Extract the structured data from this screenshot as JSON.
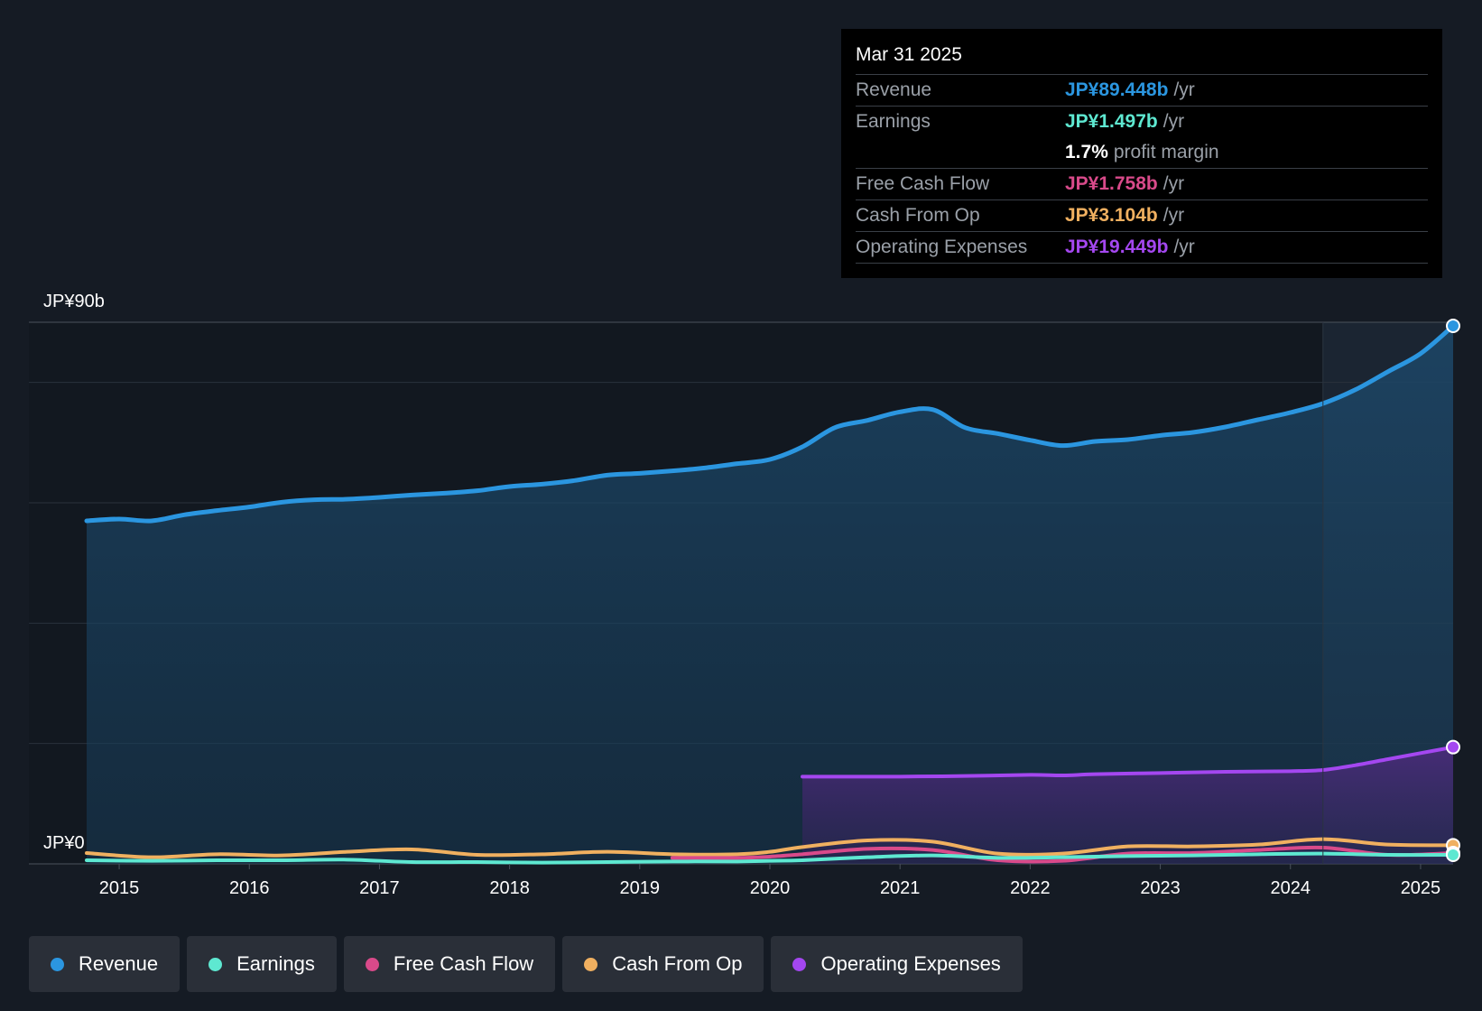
{
  "tooltip": {
    "date": "Mar 31 2025",
    "rows": [
      {
        "label": "Revenue",
        "value": "JP¥89.448b",
        "unit": "/yr",
        "color": "#2b96e0"
      },
      {
        "label": "Earnings",
        "value": "JP¥1.497b",
        "unit": "/yr",
        "color": "#5ee8d1"
      },
      {
        "label": "",
        "value": "1.7%",
        "unit": "profit margin",
        "color": "#ffffff"
      },
      {
        "label": "Free Cash Flow",
        "value": "JP¥1.758b",
        "unit": "/yr",
        "color": "#d94a8a"
      },
      {
        "label": "Cash From Op",
        "value": "JP¥3.104b",
        "unit": "/yr",
        "color": "#f0b060"
      },
      {
        "label": "Operating Expenses",
        "value": "JP¥19.449b",
        "unit": "/yr",
        "color": "#a447f0"
      }
    ]
  },
  "legend": [
    {
      "label": "Revenue",
      "color": "#2b96e0"
    },
    {
      "label": "Earnings",
      "color": "#5ee8d1"
    },
    {
      "label": "Free Cash Flow",
      "color": "#d94a8a"
    },
    {
      "label": "Cash From Op",
      "color": "#f0b060"
    },
    {
      "label": "Operating Expenses",
      "color": "#a447f0"
    }
  ],
  "chart_data": {
    "type": "area",
    "title": "",
    "ylabel_top": "JP¥90b",
    "ylabel_bottom": "JP¥0",
    "ylim": [
      0,
      90
    ],
    "xlim": [
      2014.75,
      2025.25
    ],
    "x_ticks": [
      "2015",
      "2016",
      "2017",
      "2018",
      "2019",
      "2020",
      "2021",
      "2022",
      "2023",
      "2024",
      "2025"
    ],
    "forecast_divider": 2024.25,
    "series": [
      {
        "name": "Revenue",
        "color": "#2b96e0",
        "fill": true,
        "x": [
          2014.75,
          2015.0,
          2015.25,
          2015.5,
          2015.75,
          2016.0,
          2016.25,
          2016.5,
          2016.75,
          2017.0,
          2017.25,
          2017.5,
          2017.75,
          2018.0,
          2018.25,
          2018.5,
          2018.75,
          2019.0,
          2019.25,
          2019.5,
          2019.75,
          2020.0,
          2020.25,
          2020.5,
          2020.75,
          2021.0,
          2021.25,
          2021.5,
          2021.75,
          2022.0,
          2022.25,
          2022.5,
          2022.75,
          2023.0,
          2023.25,
          2023.5,
          2023.75,
          2024.0,
          2024.25,
          2024.5,
          2024.75,
          2025.0,
          2025.25
        ],
        "values": [
          57.0,
          57.3,
          57.0,
          58.0,
          58.7,
          59.3,
          60.1,
          60.5,
          60.6,
          60.9,
          61.3,
          61.6,
          62.0,
          62.7,
          63.1,
          63.7,
          64.6,
          64.9,
          65.3,
          65.8,
          66.5,
          67.2,
          69.3,
          72.5,
          73.7,
          75.1,
          75.5,
          72.5,
          71.5,
          70.4,
          69.5,
          70.2,
          70.5,
          71.2,
          71.7,
          72.6,
          73.8,
          75.0,
          76.5,
          78.8,
          81.8,
          84.8,
          89.4
        ]
      },
      {
        "name": "Operating Expenses",
        "color": "#a447f0",
        "fill": true,
        "x": [
          2020.25,
          2020.75,
          2021.0,
          2021.5,
          2022.0,
          2022.25,
          2022.5,
          2023.0,
          2023.5,
          2024.0,
          2024.25,
          2024.5,
          2024.75,
          2025.0,
          2025.25
        ],
        "values": [
          14.5,
          14.5,
          14.5,
          14.6,
          14.8,
          14.7,
          14.9,
          15.1,
          15.3,
          15.4,
          15.6,
          16.4,
          17.4,
          18.4,
          19.4
        ]
      },
      {
        "name": "Cash From Op",
        "color": "#f0b060",
        "fill": false,
        "x": [
          2014.75,
          2015.25,
          2015.75,
          2016.25,
          2016.75,
          2017.25,
          2017.75,
          2018.25,
          2018.75,
          2019.25,
          2019.75,
          2020.0,
          2020.25,
          2020.75,
          2021.25,
          2021.75,
          2022.25,
          2022.75,
          2023.25,
          2023.75,
          2024.25,
          2024.75,
          2025.25
        ],
        "values": [
          1.8,
          1.1,
          1.6,
          1.4,
          2.0,
          2.4,
          1.5,
          1.6,
          2.0,
          1.6,
          1.6,
          2.0,
          2.8,
          3.9,
          3.7,
          1.7,
          1.7,
          2.9,
          2.9,
          3.2,
          4.1,
          3.2,
          3.1
        ]
      },
      {
        "name": "Free Cash Flow",
        "color": "#d94a8a",
        "fill": false,
        "x": [
          2019.25,
          2019.75,
          2020.0,
          2020.25,
          2020.75,
          2021.25,
          2021.75,
          2022.25,
          2022.75,
          2023.25,
          2023.75,
          2024.25,
          2024.75,
          2025.25
        ],
        "values": [
          1.0,
          1.0,
          1.2,
          1.6,
          2.5,
          2.3,
          0.6,
          0.5,
          1.7,
          1.8,
          2.3,
          2.7,
          1.5,
          1.8
        ]
      },
      {
        "name": "Earnings",
        "color": "#5ee8d1",
        "fill": false,
        "x": [
          2014.75,
          2015.25,
          2015.75,
          2016.25,
          2016.75,
          2017.25,
          2017.75,
          2018.25,
          2018.75,
          2019.25,
          2019.75,
          2020.0,
          2020.25,
          2020.75,
          2021.25,
          2021.75,
          2022.25,
          2022.75,
          2023.25,
          2023.75,
          2024.25,
          2024.75,
          2025.25
        ],
        "values": [
          0.6,
          0.5,
          0.6,
          0.6,
          0.7,
          0.3,
          0.3,
          0.2,
          0.3,
          0.4,
          0.4,
          0.5,
          0.6,
          1.1,
          1.4,
          1.0,
          1.1,
          1.3,
          1.4,
          1.6,
          1.7,
          1.5,
          1.5
        ]
      }
    ]
  }
}
